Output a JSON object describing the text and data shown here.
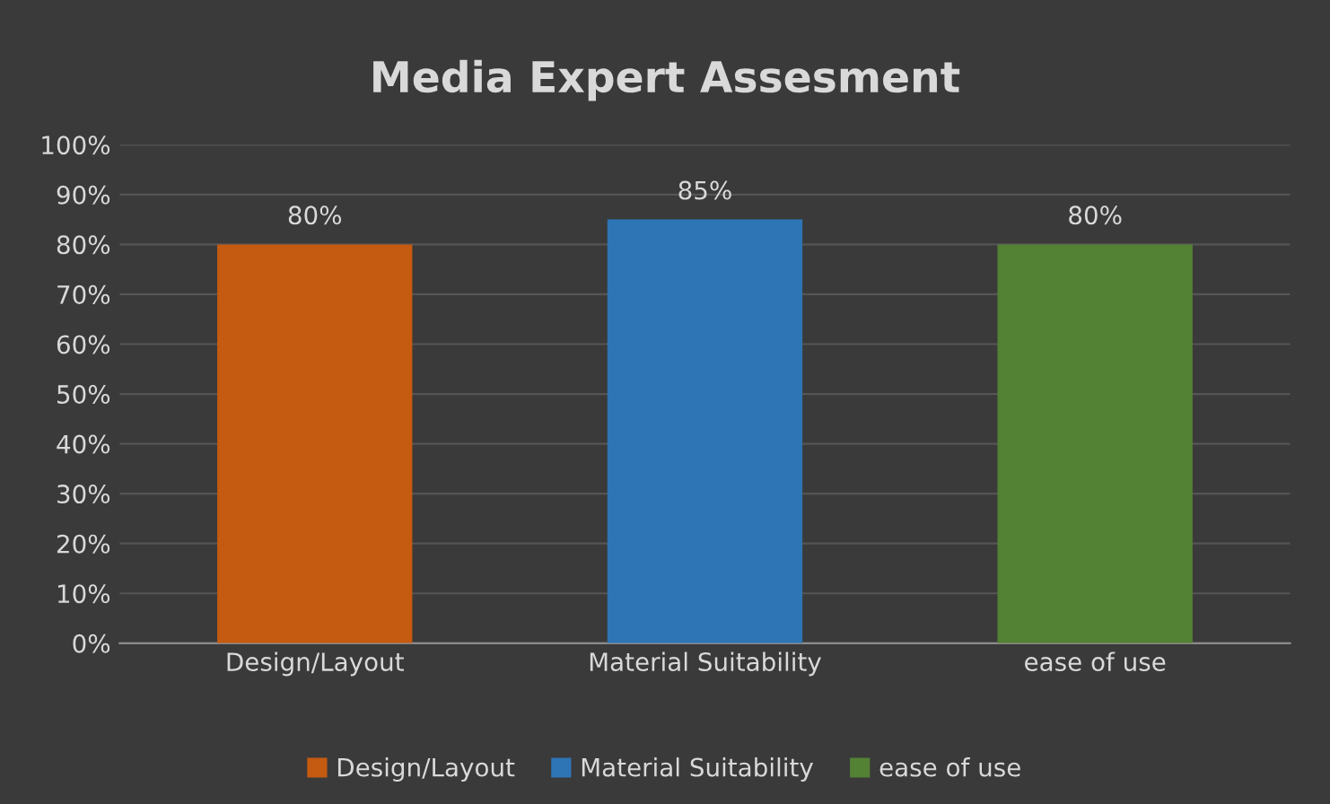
{
  "chart_data": {
    "type": "bar",
    "title": "Media Expert Assesment",
    "categories": [
      "Design/Layout",
      "Material Suitability",
      "ease of use"
    ],
    "series": [
      {
        "name": "Design/Layout",
        "color": "#c55a11",
        "values": [
          80,
          null,
          null
        ],
        "value_labels": [
          "80%",
          null,
          null
        ]
      },
      {
        "name": "Material Suitability",
        "color": "#2e75b6",
        "values": [
          null,
          85,
          null
        ],
        "value_labels": [
          null,
          "85%",
          null
        ]
      },
      {
        "name": "ease of use",
        "color": "#548235",
        "values": [
          null,
          null,
          80
        ],
        "value_labels": [
          null,
          null,
          "80%"
        ]
      }
    ],
    "ylim": [
      0,
      100
    ],
    "yticks": [
      {
        "value": 0,
        "label": "0%"
      },
      {
        "value": 10,
        "label": "10%"
      },
      {
        "value": 20,
        "label": "20%"
      },
      {
        "value": 30,
        "label": "30%"
      },
      {
        "value": 40,
        "label": "40%"
      },
      {
        "value": 50,
        "label": "50%"
      },
      {
        "value": 60,
        "label": "60%"
      },
      {
        "value": 70,
        "label": "70%"
      },
      {
        "value": 80,
        "label": "80%"
      },
      {
        "value": 90,
        "label": "90%"
      },
      {
        "value": 100,
        "label": "100%"
      }
    ],
    "grid": "y",
    "legend": "bottom"
  }
}
